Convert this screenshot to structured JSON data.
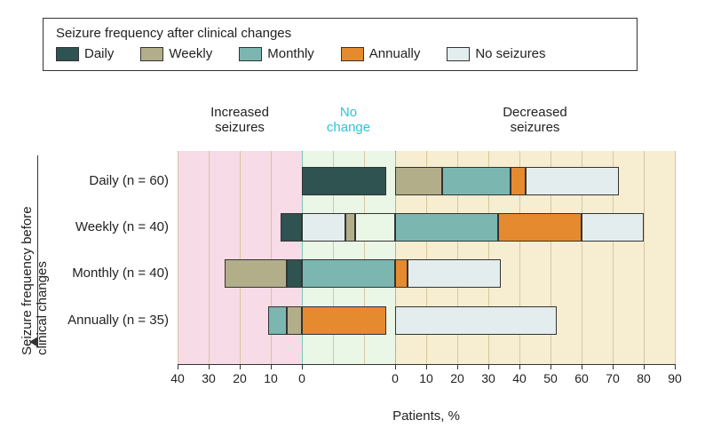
{
  "legend": {
    "title": "Seizure frequency after clinical changes",
    "items": [
      {
        "label": "Daily",
        "color": "#2e5351"
      },
      {
        "label": "Weekly",
        "color": "#b3ae8a"
      },
      {
        "label": "Monthly",
        "color": "#7bb6b1"
      },
      {
        "label": "Annually",
        "color": "#e58a2e"
      },
      {
        "label": "No seizures",
        "color": "#e4edee"
      }
    ]
  },
  "yAxisTitle": "Seizure frequency before\nclinical changes",
  "xAxisTitle": "Patients, %",
  "regions": {
    "increased": {
      "label": "Increased\nseizures",
      "color": "#f7dbe6",
      "textColor": "#222222"
    },
    "nochange": {
      "label": "No\nchange",
      "color": "#eaf6e6",
      "textColor": "#2ec4d6"
    },
    "decreased": {
      "label": "Decreased\nseizures",
      "color": "#f7edd1",
      "textColor": "#222222"
    }
  },
  "axis": {
    "leftMax": 40,
    "middleSpan": 30,
    "rightMax": 90,
    "ticks": [
      40,
      30,
      20,
      10,
      0,
      0,
      10,
      20,
      30,
      40,
      50,
      60,
      70,
      80,
      90
    ],
    "tickPositions": [
      -40,
      -30,
      -20,
      -10,
      0,
      30,
      40,
      50,
      60,
      70,
      80,
      90,
      100,
      110,
      120
    ],
    "dividers": [
      0,
      30
    ],
    "dividerColor": "#2ec4d6",
    "gridColor": "#d8c7a0"
  },
  "rows": [
    {
      "label": "Daily (n = 60)",
      "increased": [],
      "nochange": [
        {
          "color": "#2e5351",
          "value": 27
        }
      ],
      "decreased": [
        {
          "color": "#b3ae8a",
          "value": 15
        },
        {
          "color": "#7bb6b1",
          "value": 22
        },
        {
          "color": "#e58a2e",
          "value": 5
        },
        {
          "color": "#e4edee",
          "value": 30
        }
      ]
    },
    {
      "label": "Weekly (n = 40)",
      "increased": [
        {
          "color": "#2e5351",
          "value": 7
        }
      ],
      "nochange": [
        {
          "color": "#e4edee",
          "value": 14
        },
        {
          "color": "#b3ae8a",
          "value": 3
        },
        {
          "color": "#eaf6e6",
          "value": 13
        }
      ],
      "decreased": [
        {
          "color": "#7bb6b1",
          "value": 33
        },
        {
          "color": "#e58a2e",
          "value": 27
        },
        {
          "color": "#e4edee",
          "value": 20
        }
      ]
    },
    {
      "label": "Monthly (n = 40)",
      "increased": [
        {
          "color": "#2e5351",
          "value": 5
        },
        {
          "color": "#b3ae8a",
          "value": 20
        }
      ],
      "nochange": [
        {
          "color": "#7bb6b1",
          "value": 30
        }
      ],
      "decreased": [
        {
          "color": "#e58a2e",
          "value": 4
        },
        {
          "color": "#e4edee",
          "value": 30
        }
      ]
    },
    {
      "label": "Annually (n = 35)",
      "increased": [
        {
          "color": "#b3ae8a",
          "value": 5
        },
        {
          "color": "#7bb6b1",
          "value": 6
        }
      ],
      "nochange": [
        {
          "color": "#e58a2e",
          "value": 27
        }
      ],
      "decreased": [
        {
          "color": "#e4edee",
          "value": 52
        }
      ]
    }
  ],
  "style": {
    "barBorder": "#333333",
    "fontSize": 15,
    "tickFontSize": 14
  }
}
